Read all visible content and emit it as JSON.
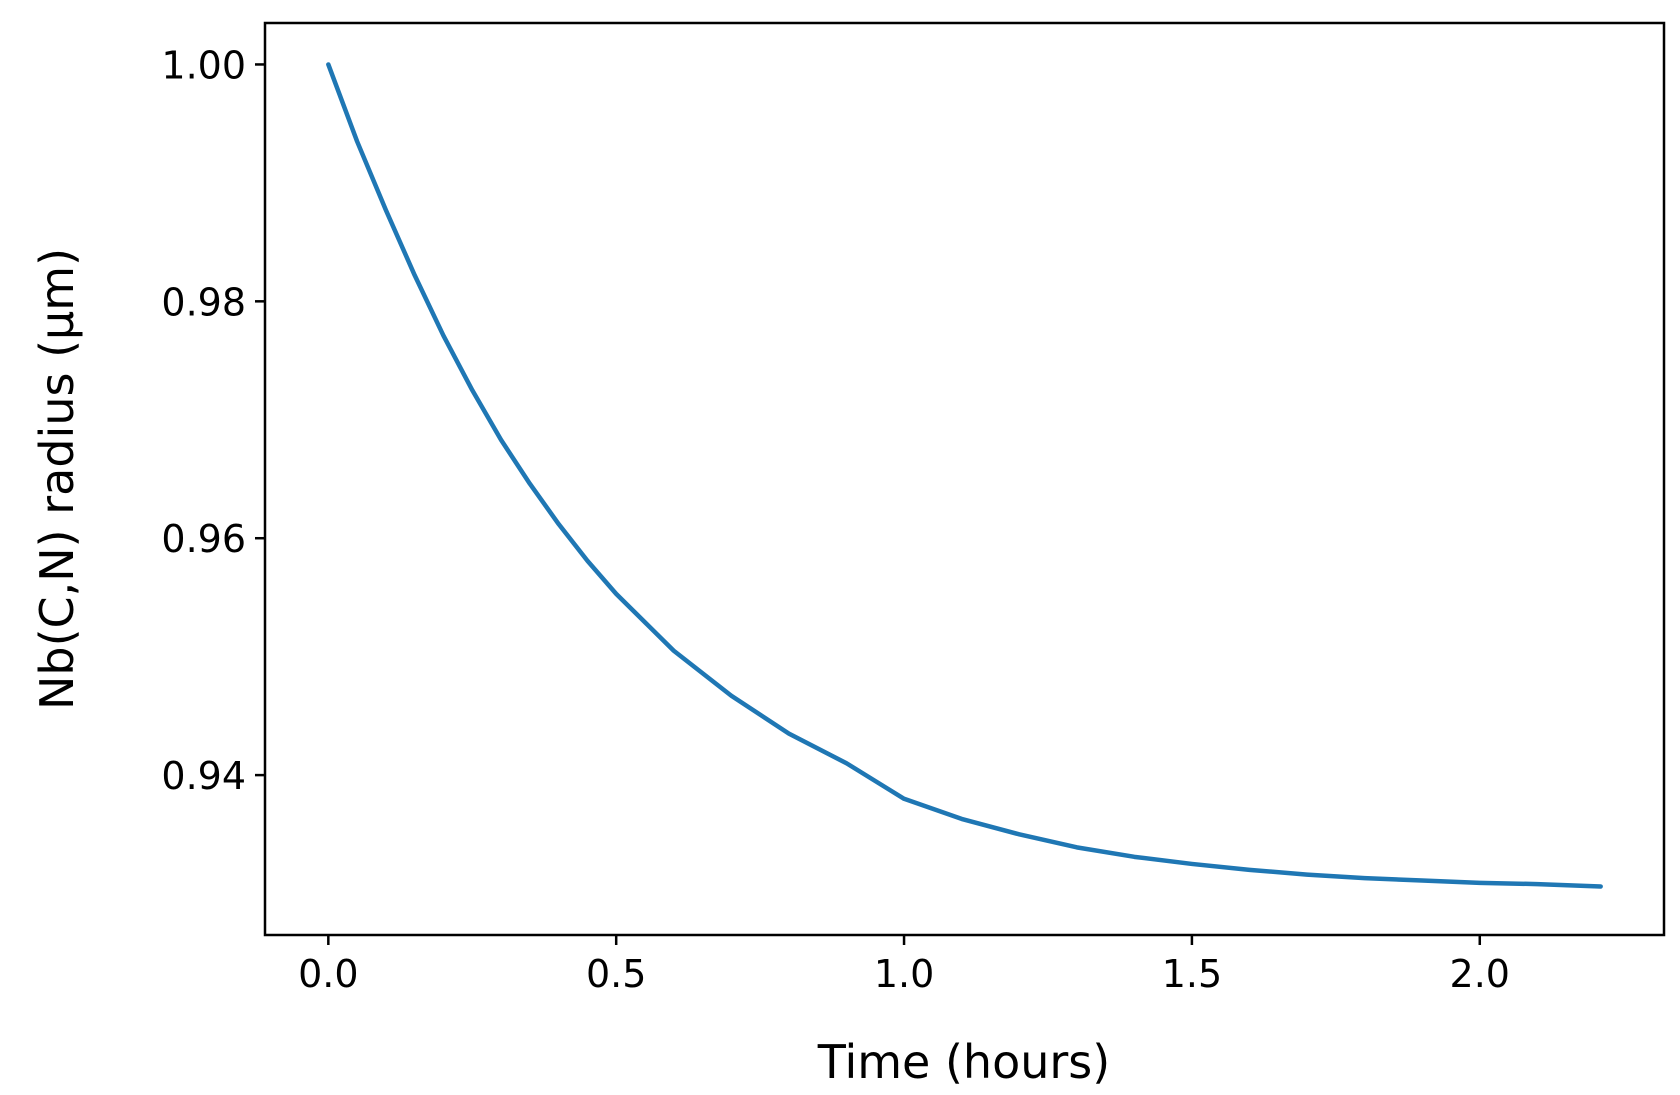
{
  "chart_data": {
    "type": "line",
    "title": "",
    "xlabel": "Time (hours)",
    "ylabel": "Nb(C,N) radius  (μm)",
    "xlim": [
      -0.11,
      2.32
    ],
    "ylim": [
      0.9265,
      1.0035
    ],
    "xticks": [
      {
        "value": 0.0,
        "label": "0.0"
      },
      {
        "value": 0.5,
        "label": "0.5"
      },
      {
        "value": 1.0,
        "label": "1.0"
      },
      {
        "value": 1.5,
        "label": "1.5"
      },
      {
        "value": 2.0,
        "label": "2.0"
      }
    ],
    "yticks": [
      {
        "value": 0.94,
        "label": "0.94"
      },
      {
        "value": 0.96,
        "label": "0.96"
      },
      {
        "value": 0.98,
        "label": "0.98"
      },
      {
        "value": 1.0,
        "label": "1.00"
      }
    ],
    "grid": false,
    "color": "#1f77b4",
    "series": [
      {
        "x": [
          0.0,
          0.05,
          0.1,
          0.15,
          0.2,
          0.25,
          0.3,
          0.35,
          0.4,
          0.45,
          0.5,
          0.6,
          0.7,
          0.8,
          0.9,
          1.0,
          1.1,
          1.2,
          1.3,
          1.4,
          1.5,
          1.6,
          1.7,
          1.8,
          1.9,
          2.0,
          2.1,
          2.21
        ],
        "y": [
          1.0,
          0.9935,
          0.9877,
          0.9822,
          0.9771,
          0.9725,
          0.9683,
          0.9646,
          0.9612,
          0.9581,
          0.9553,
          0.9505,
          0.9467,
          0.9435,
          0.941,
          0.938,
          0.9363,
          0.935,
          0.9339,
          0.9331,
          0.9325,
          0.932,
          0.9316,
          0.9313,
          0.9311,
          0.9309,
          0.9308,
          0.9306
        ]
      }
    ]
  }
}
